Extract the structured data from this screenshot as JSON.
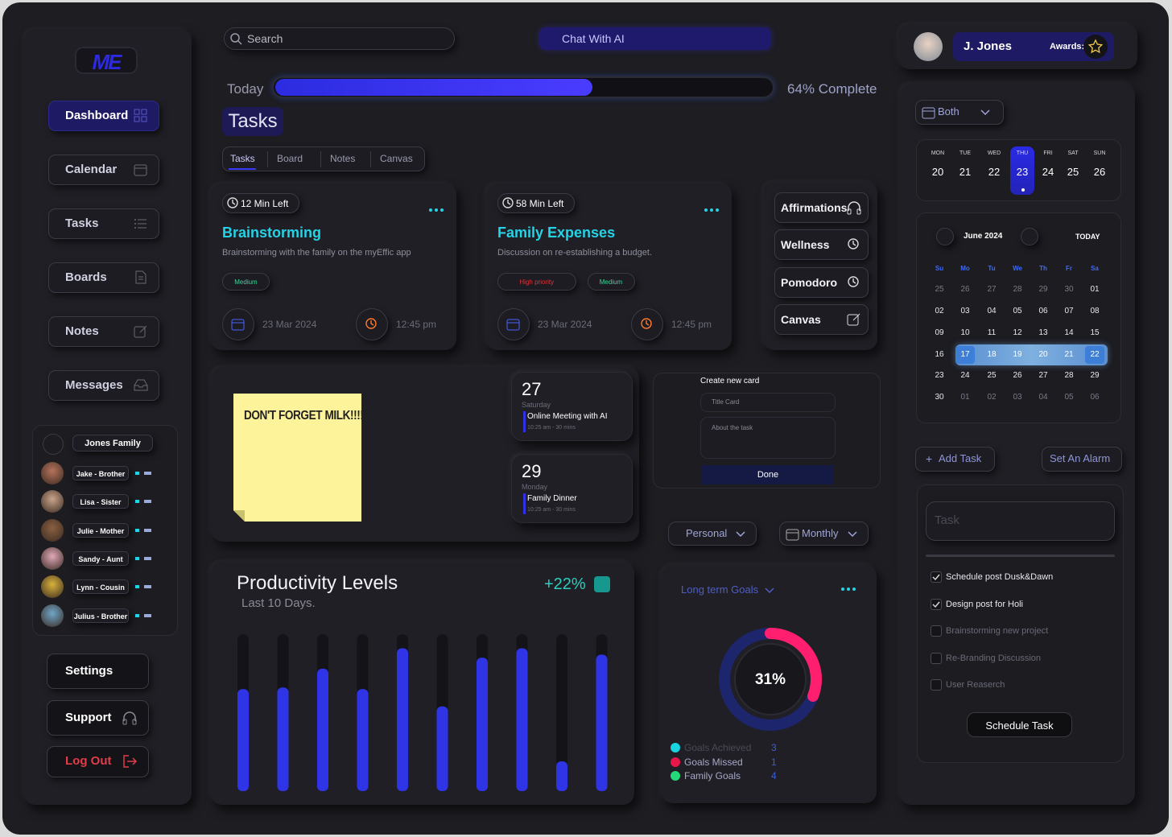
{
  "brand": {
    "logo": "ME"
  },
  "nav": {
    "items": [
      "Dashboard",
      "Calendar",
      "Tasks",
      "Boards",
      "Notes",
      "Messages"
    ]
  },
  "family": {
    "title": "Jones Family",
    "members": [
      "Jake - Brother",
      "Lisa - Sister",
      "Julie - Mother",
      "Sandy - Aunt",
      "Lynn - Cousin",
      "Julius - Brother"
    ]
  },
  "footer_nav": {
    "settings": "Settings",
    "support": "Support",
    "logout": "Log Out"
  },
  "search": {
    "placeholder": "Search"
  },
  "chat": {
    "label": "Chat With AI"
  },
  "progress": {
    "label": "Today",
    "value": 64,
    "text": "64% Complete"
  },
  "tasks_header": {
    "title": "Tasks",
    "tabs": [
      "Tasks",
      "Board",
      "Notes",
      "Canvas"
    ]
  },
  "task_cards": [
    {
      "time_left": "12 Min Left",
      "title": "Brainstorming",
      "description": "Brainstorming with the family on the myEffic app",
      "tags": [
        {
          "text": "Medium",
          "color": "#3fd69a"
        }
      ],
      "date": "23 Mar 2024",
      "time": "12:45 pm"
    },
    {
      "time_left": "58 Min Left",
      "title": "Family Expenses",
      "description": "Discussion on re-establishing a budget.",
      "tags": [
        {
          "text": "High priority",
          "color": "#e0333a"
        },
        {
          "text": "Medium",
          "color": "#3fd69a"
        }
      ],
      "date": "23 Mar 2024",
      "time": "12:45 pm"
    }
  ],
  "quick_actions": [
    "Affirmations",
    "Wellness",
    "Pomodoro",
    "Canvas"
  ],
  "sticky_note": {
    "text": "DON'T FORGET MILK!!!!"
  },
  "events": [
    {
      "day": "27",
      "weekday": "Saturday",
      "title": "Online Meeting with AI",
      "detail": "10:25 am - 30 mins"
    },
    {
      "day": "29",
      "weekday": "Monday",
      "title": "Family Dinner",
      "detail": "10:25 am - 30 mins"
    }
  ],
  "new_card": {
    "title": "Create new card",
    "title_placeholder": "Title Card",
    "about_placeholder": "About the task",
    "button": "Done"
  },
  "filters": [
    "Personal",
    "Monthly"
  ],
  "chart_data": {
    "type": "bar",
    "title": "Productivity Levels",
    "subtitle": "Last 10 Days.",
    "change": "+22%",
    "values": [
      65,
      66,
      78,
      65,
      91,
      54,
      85,
      91,
      19,
      87
    ],
    "ylim": [
      0,
      100
    ],
    "color": "#2f35e6"
  },
  "goals": {
    "title": "Long term Goals",
    "percent": 31,
    "percent_label": "31%",
    "color": "#ff1f6e",
    "legend": [
      {
        "name": "Goals Achieved",
        "value": 3,
        "color": "#19d3e0"
      },
      {
        "name": "Goals Missed",
        "value": 1,
        "color": "#e8174a"
      },
      {
        "name": "Family Goals",
        "value": 4,
        "color": "#23d97a"
      }
    ]
  },
  "user": {
    "name": "J. Jones",
    "awards_label": "Awards:"
  },
  "week": {
    "filter": "Both",
    "selected": 3,
    "days": [
      {
        "dow": "MON",
        "date": "20"
      },
      {
        "dow": "TUE",
        "date": "21"
      },
      {
        "dow": "WED",
        "date": "22"
      },
      {
        "dow": "THU",
        "date": "23"
      },
      {
        "dow": "FRI",
        "date": "24"
      },
      {
        "dow": "SAT",
        "date": "25"
      },
      {
        "dow": "SUN",
        "date": "26"
      }
    ]
  },
  "month": {
    "title": "June 2024",
    "today": "TODAY",
    "weekdays": [
      "Su",
      "Mo",
      "Tu",
      "We",
      "Th",
      "Fr",
      "Sa"
    ],
    "highlight_row": 3,
    "rows": [
      [
        "25",
        "26",
        "27",
        "28",
        "29",
        "30",
        "01"
      ],
      [
        "02",
        "03",
        "04",
        "05",
        "06",
        "07",
        "08"
      ],
      [
        "09",
        "10",
        "11",
        "12",
        "13",
        "14",
        "15"
      ],
      [
        "16",
        "17",
        "18",
        "19",
        "20",
        "21",
        "22"
      ],
      [
        "23",
        "24",
        "25",
        "26",
        "27",
        "28",
        "29"
      ],
      [
        "30",
        "01",
        "02",
        "03",
        "04",
        "05",
        "06"
      ]
    ]
  },
  "actions": {
    "add_task": "Add Task",
    "alarm": "Set An Alarm"
  },
  "todo": {
    "placeholder": "Task",
    "items": [
      {
        "text": "Schedule post Dusk&Dawn",
        "checked": true
      },
      {
        "text": "Design post for Holi",
        "checked": true
      },
      {
        "text": "Brainstorming new project",
        "checked": false
      },
      {
        "text": "Re-Branding Discussion",
        "checked": false
      },
      {
        "text": "User Reaserch",
        "checked": false
      }
    ],
    "button": "Schedule Task"
  }
}
